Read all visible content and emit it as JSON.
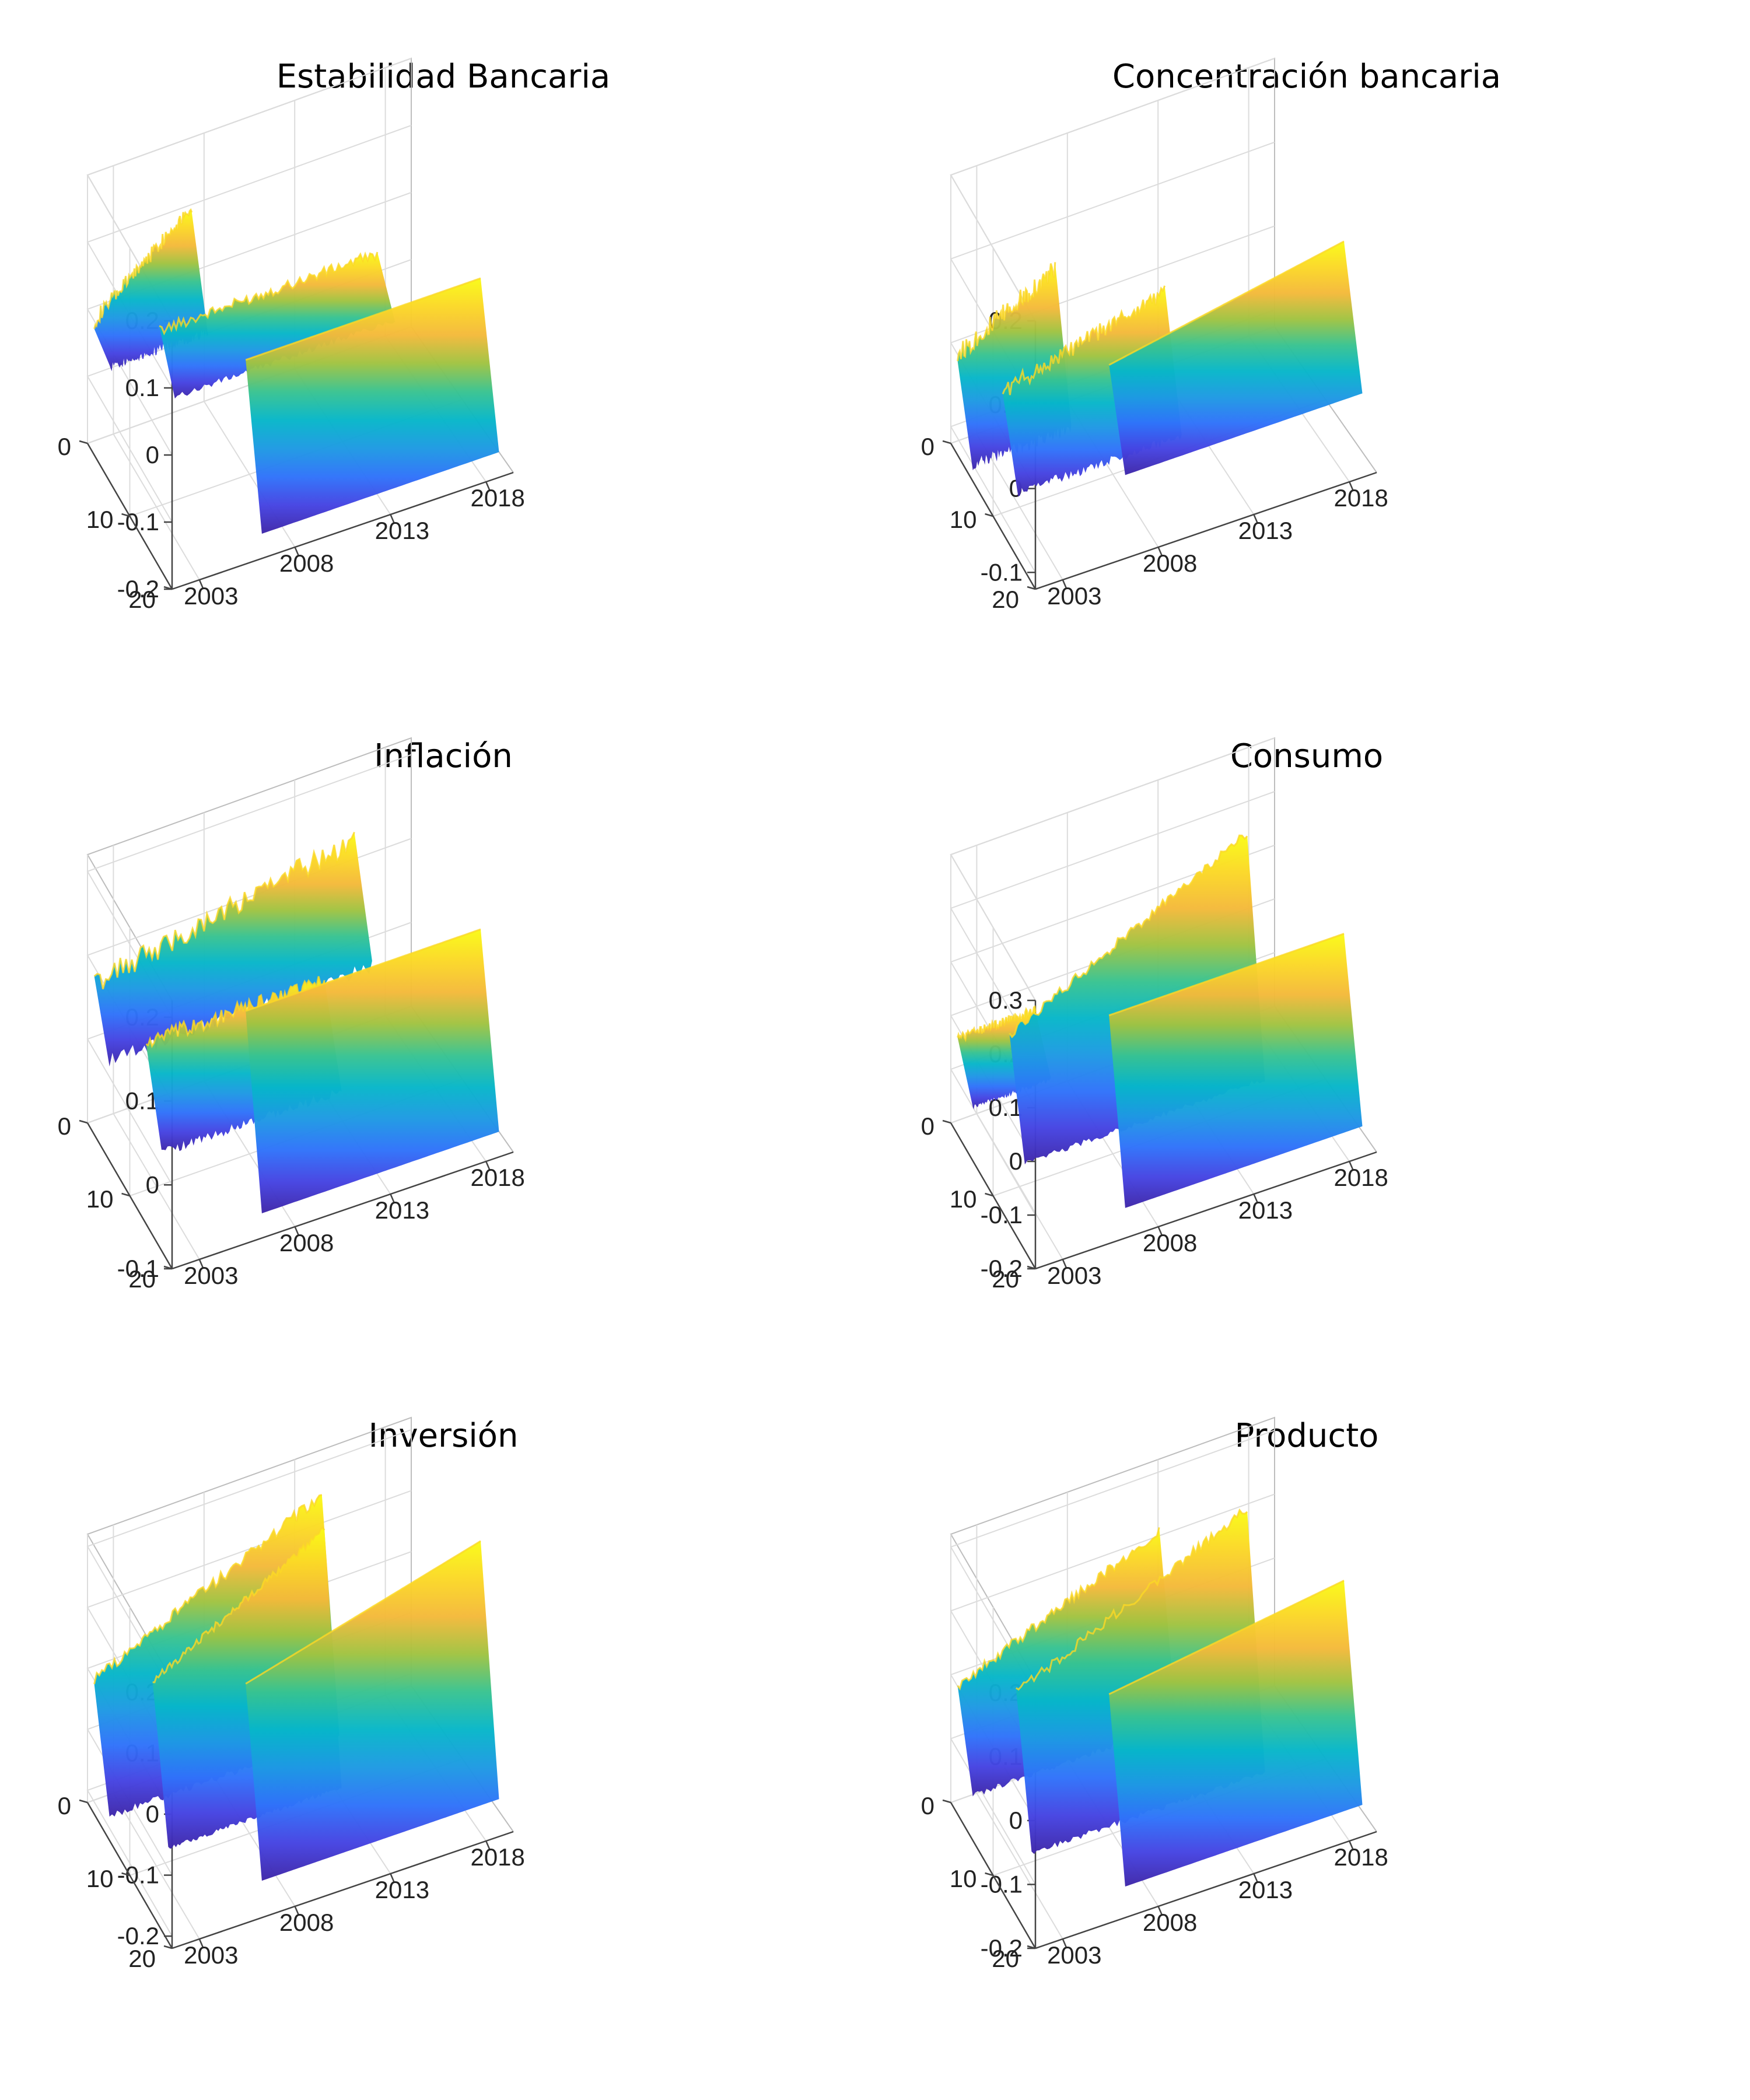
{
  "colors": {
    "colormap": [
      "#3e26a8",
      "#4543e2",
      "#2f72fa",
      "#1d99e3",
      "#06b6c9",
      "#38c390",
      "#a0c341",
      "#f4b93a",
      "#fbd826",
      "#f9fb15"
    ]
  },
  "chart_data": [
    {
      "type": "surface",
      "title": "Estabilidad Bancaria",
      "x_ticks": [
        "2003",
        "2008",
        "2013",
        "2018"
      ],
      "y_ticks": [
        "0",
        "10",
        "20"
      ],
      "z_ticks": [
        "0.2",
        "0.1",
        "0",
        "-0.1",
        "-0.2"
      ],
      "zlim": [
        -0.2,
        0.2
      ],
      "ridges": [
        {
          "start": 0.0,
          "end": 0.3,
          "from": 0.0,
          "to": 0.12,
          "drop": -0.03,
          "noise": 0.012
        },
        {
          "start": 0.12,
          "end": 0.78,
          "from": 0.03,
          "to": 0.03,
          "drop": -0.03,
          "noise": 0.008
        },
        {
          "start": 0.3,
          "end": 1.0,
          "from": 0.02,
          "to": 0.02,
          "drop": -0.2,
          "noise": 0.0
        }
      ]
    },
    {
      "type": "surface",
      "title": "Concentración bancaria",
      "x_ticks": [
        "2003",
        "2008",
        "2013",
        "2018"
      ],
      "y_ticks": [
        "0",
        "10",
        "20"
      ],
      "z_ticks": [
        "0.2",
        "0.1",
        "0",
        "-0.1"
      ],
      "zlim": [
        -0.12,
        0.2
      ],
      "ridges": [
        {
          "start": 0.0,
          "end": 0.3,
          "from": 0.0,
          "to": 0.06,
          "drop": -0.1,
          "noise": 0.012
        },
        {
          "start": 0.06,
          "end": 0.55,
          "from": 0.0,
          "to": 0.05,
          "drop": -0.09,
          "noise": 0.01
        },
        {
          "start": 0.3,
          "end": 1.0,
          "from": 0.05,
          "to": 0.1,
          "drop": -0.05,
          "noise": 0.0
        }
      ]
    },
    {
      "type": "surface",
      "title": "Inflación",
      "x_ticks": [
        "2003",
        "2008",
        "2013",
        "2018"
      ],
      "y_ticks": [
        "0",
        "10",
        "20"
      ],
      "z_ticks": [
        "0.2",
        "0.1",
        "0",
        "-0.1"
      ],
      "zlim": [
        -0.1,
        0.22
      ],
      "ridges": [
        {
          "start": 0.0,
          "end": 0.8,
          "from": 0.08,
          "to": 0.14,
          "drop": 0.02,
          "noise": 0.014
        },
        {
          "start": 0.08,
          "end": 0.62,
          "from": 0.05,
          "to": 0.05,
          "drop": -0.05,
          "noise": 0.01
        },
        {
          "start": 0.3,
          "end": 1.0,
          "from": 0.11,
          "to": 0.11,
          "drop": -0.1,
          "noise": 0.0
        }
      ]
    },
    {
      "type": "surface",
      "title": "Consumo",
      "x_ticks": [
        "2003",
        "2008",
        "2013",
        "2018"
      ],
      "y_ticks": [
        "0",
        "10",
        "20"
      ],
      "z_ticks": [
        "0.3",
        "0.2",
        "0.1",
        "0",
        "-0.1",
        "-0.2"
      ],
      "zlim": [
        -0.2,
        0.3
      ],
      "ridges": [
        {
          "start": 0.0,
          "end": 0.24,
          "from": -0.02,
          "to": -0.02,
          "drop": -0.1,
          "noise": 0.008
        },
        {
          "start": 0.08,
          "end": 0.8,
          "from": 0.05,
          "to": 0.27,
          "drop": -0.14,
          "noise": 0.009
        },
        {
          "start": 0.3,
          "end": 1.0,
          "from": 0.12,
          "to": 0.12,
          "drop": -0.19,
          "noise": 0.0
        }
      ]
    },
    {
      "type": "surface",
      "title": "Inversión",
      "x_ticks": [
        "2003",
        "2008",
        "2013",
        "2018"
      ],
      "y_ticks": [
        "0",
        "10",
        "20"
      ],
      "z_ticks": [
        "0.2",
        "0.1",
        "0",
        "-0.1",
        "-0.2"
      ],
      "zlim": [
        -0.22,
        0.22
      ],
      "ridges": [
        {
          "start": 0.0,
          "end": 0.7,
          "from": 0.0,
          "to": 0.17,
          "drop": -0.18,
          "noise": 0.01
        },
        {
          "start": 0.1,
          "end": 0.62,
          "from": 0.05,
          "to": 0.2,
          "drop": -0.18,
          "noise": 0.006
        },
        {
          "start": 0.3,
          "end": 1.0,
          "from": 0.08,
          "to": 0.18,
          "drop": -0.2,
          "noise": 0.0
        }
      ]
    },
    {
      "type": "surface",
      "title": "Producto",
      "x_ticks": [
        "2003",
        "2008",
        "2013",
        "2018"
      ],
      "y_ticks": [
        "0",
        "10",
        "20"
      ],
      "z_ticks": [
        "0.2",
        "0.1",
        "0",
        "-0.1",
        "-0.2"
      ],
      "zlim": [
        -0.2,
        0.22
      ],
      "ridges": [
        {
          "start": 0.0,
          "end": 0.62,
          "from": 0.0,
          "to": 0.13,
          "drop": -0.13,
          "noise": 0.008
        },
        {
          "start": 0.1,
          "end": 0.8,
          "from": 0.04,
          "to": 0.2,
          "drop": -0.17,
          "noise": 0.008
        },
        {
          "start": 0.3,
          "end": 1.0,
          "from": 0.07,
          "to": 0.12,
          "drop": -0.19,
          "noise": 0.0
        }
      ]
    }
  ]
}
